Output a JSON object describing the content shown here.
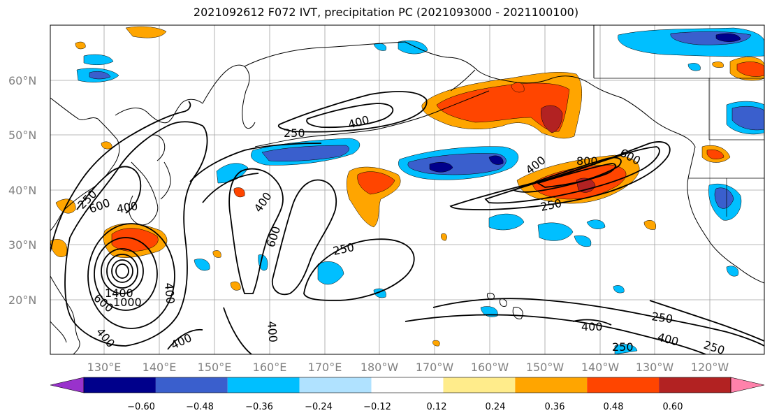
{
  "title": "2021092612 F072 IVT, precipitation PC (2021093000 - 2021100100)",
  "map": {
    "lat_labels": [
      "60°N",
      "50°N",
      "40°N",
      "30°N",
      "20°N"
    ],
    "lon_labels": [
      "130°E",
      "140°E",
      "150°E",
      "160°E",
      "170°E",
      "180°W",
      "170°W",
      "160°W",
      "150°W",
      "140°W",
      "130°W",
      "120°W"
    ],
    "contour_labels": [
      "400",
      "250",
      "400",
      "600",
      "800",
      "250",
      "400",
      "600",
      "250",
      "600",
      "1000",
      "1400",
      "600",
      "400",
      "400",
      "250",
      "400",
      "250",
      "400",
      "250",
      "600",
      "250",
      "400"
    ]
  },
  "colorbar": {
    "colors": [
      "#9932cc",
      "#00008b",
      "#3a5fcd",
      "#00bfff",
      "#b0e2ff",
      "#ffffff",
      "#ffec8b",
      "#ffa500",
      "#ff4500",
      "#b22222",
      "#ff82ab"
    ],
    "tick_labels": [
      "−0.60",
      "−0.48",
      "−0.36",
      "−0.24",
      "−0.12",
      "0.12",
      "0.24",
      "0.36",
      "0.48",
      "0.60"
    ]
  }
}
